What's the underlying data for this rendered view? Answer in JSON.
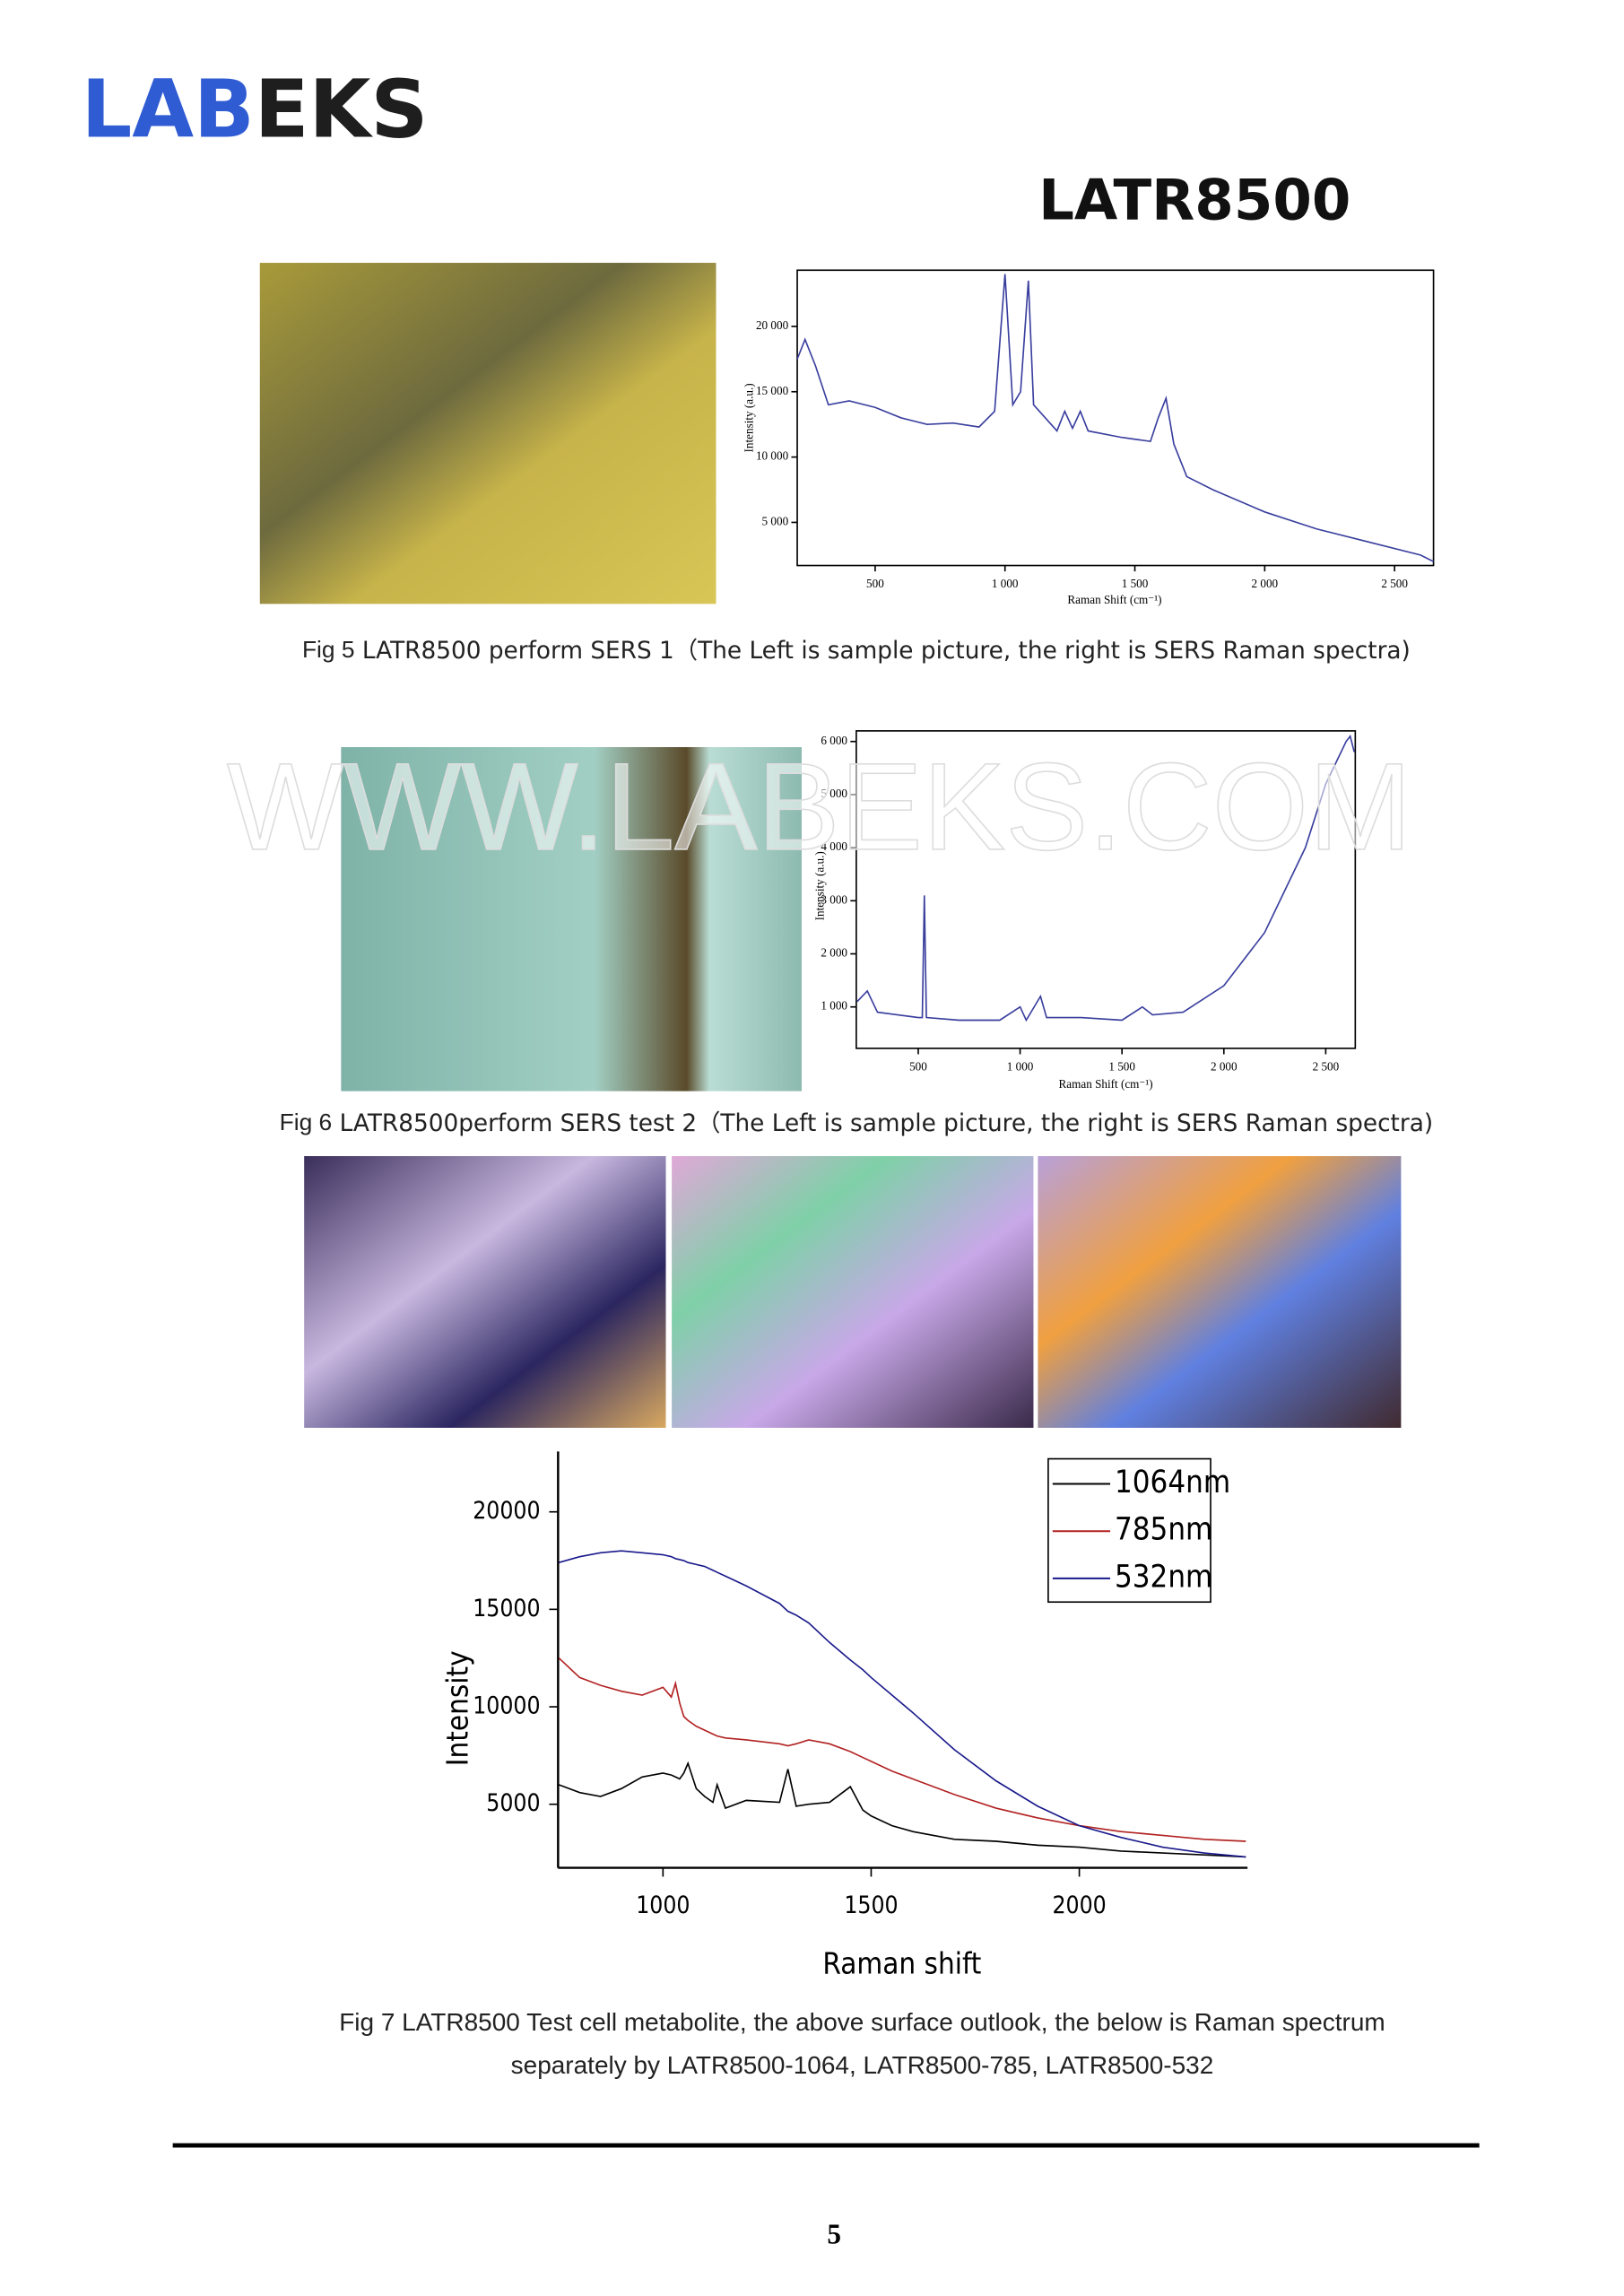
{
  "header": {
    "logo_blue": "LAB",
    "logo_dark": "EKS",
    "model": "LATR8500"
  },
  "watermark": "WWW.LABEKS.COM",
  "figures": [
    {
      "caption_label": "Fig 5",
      "caption": "LATR8500 perform SERS 1（The Left is sample picture, the right is SERS Raman spectra)",
      "chart": {
        "type": "line",
        "xlabel": "Raman Shift (cm⁻¹)",
        "ylabel": "Intensity (a.u.)",
        "xlim": [
          200,
          2650
        ],
        "ylim": [
          1700,
          24300
        ],
        "xticks": [
          500,
          {
            "value": 1000,
            "label": "1 000"
          },
          {
            "value": 1500,
            "label": "1 500"
          },
          {
            "value": 2000,
            "label": "2 000"
          },
          {
            "value": 2500,
            "label": "2 500"
          }
        ],
        "yticks": [
          {
            "value": 5000,
            "label": "5 000"
          },
          {
            "value": 10000,
            "label": "10 000"
          },
          {
            "value": 15000,
            "label": "15 000"
          },
          {
            "value": 20000,
            "label": "20 000"
          }
        ],
        "x": [
          200,
          230,
          270,
          320,
          400,
          500,
          600,
          700,
          800,
          900,
          960,
          1000,
          1030,
          1060,
          1090,
          1110,
          1200,
          1230,
          1260,
          1290,
          1320,
          1450,
          1560,
          1590,
          1620,
          1650,
          1700,
          1800,
          2000,
          2200,
          2400,
          2600,
          2650
        ],
        "series": [
          {
            "color": "#3a3f9e",
            "values": [
              17500,
              19000,
              17000,
              14000,
              14300,
              13800,
              13000,
              12500,
              12600,
              12300,
              13500,
              24000,
              14000,
              15000,
              23500,
              14000,
              12000,
              13500,
              12200,
              13500,
              12000,
              11500,
              11200,
              13000,
              14500,
              11000,
              8500,
              7500,
              5800,
              4500,
              3500,
              2500,
              2000
            ]
          }
        ]
      }
    },
    {
      "caption_label": "Fig 6",
      "caption": "LATR8500perform SERS test 2（The Left is sample picture, the right is SERS Raman spectra)",
      "chart": {
        "type": "line",
        "xlabel": "Raman Shift (cm⁻¹)",
        "ylabel": "Intensity (a.u.)",
        "xlim": [
          196,
          2645
        ],
        "ylim": [
          220,
          6200
        ],
        "xticks": [
          500,
          {
            "value": 1000,
            "label": "1 000"
          },
          {
            "value": 1500,
            "label": "1 500"
          },
          {
            "value": 2000,
            "label": "2 000"
          },
          {
            "value": 2500,
            "label": "2 500"
          }
        ],
        "yticks": [
          {
            "value": 1000,
            "label": "1 000"
          },
          {
            "value": 2000,
            "label": "2 000"
          },
          {
            "value": 3000,
            "label": "3 000"
          },
          {
            "value": 4000,
            "label": "4 000"
          },
          {
            "value": 5000,
            "label": "5 000"
          },
          {
            "value": 6000,
            "label": "6 000"
          }
        ],
        "x": [
          200,
          250,
          300,
          400,
          500,
          520,
          530,
          540,
          700,
          900,
          1000,
          1030,
          1100,
          1130,
          1300,
          1500,
          1600,
          1650,
          1800,
          2000,
          2200,
          2400,
          2500,
          2600,
          2620,
          2640
        ],
        "series": [
          {
            "color": "#3a3f9e",
            "values": [
              1100,
              1300,
              900,
              850,
              800,
              800,
              3100,
              800,
              750,
              750,
              1000,
              750,
              1200,
              800,
              800,
              750,
              1000,
              850,
              900,
              1400,
              2400,
              4000,
              5200,
              6000,
              6100,
              5800
            ]
          }
        ]
      }
    },
    {
      "caption_label": "Fig 7",
      "caption": "LATR8500 Test cell metabolite, the above surface outlook, the below is Raman spectrum",
      "caption_line2": "separately by LATR8500-1064, LATR8500-785, LATR8500-532",
      "chart": {
        "type": "line",
        "xlabel": "Raman shift",
        "ylabel": "Intensity",
        "xlim": [
          748,
          2404
        ],
        "ylim": [
          1740,
          23100
        ],
        "xticks": [
          1000,
          1500,
          2000
        ],
        "yticks": [
          5000,
          10000,
          15000,
          20000
        ],
        "x": [
          750,
          800,
          850,
          900,
          950,
          1000,
          1020,
          1030,
          1040,
          1050,
          1060,
          1080,
          1100,
          1120,
          1130,
          1150,
          1200,
          1280,
          1300,
          1320,
          1350,
          1400,
          1450,
          1480,
          1500,
          1550,
          1600,
          1700,
          1800,
          1900,
          2000,
          2100,
          2200,
          2300,
          2400
        ],
        "series": [
          {
            "name": "1064nm",
            "color": "#000000",
            "values": [
              6000,
              5600,
              5400,
              5800,
              6400,
              6600,
              6500,
              6400,
              6300,
              6600,
              7100,
              5800,
              5400,
              5100,
              6000,
              4800,
              5200,
              5100,
              6800,
              4900,
              5000,
              5100,
              5900,
              4700,
              4400,
              3900,
              3600,
              3200,
              3100,
              2900,
              2800,
              2600,
              2500,
              2400,
              2300
            ]
          },
          {
            "name": "785nm",
            "color": "#b22222",
            "values": [
              12500,
              11500,
              11100,
              10800,
              10600,
              11000,
              10500,
              11200,
              10200,
              9500,
              9300,
              9000,
              8800,
              8600,
              8500,
              8400,
              8300,
              8100,
              8000,
              8100,
              8300,
              8100,
              7700,
              7400,
              7200,
              6700,
              6300,
              5500,
              4800,
              4300,
              3900,
              3600,
              3400,
              3200,
              3100
            ]
          },
          {
            "name": "532nm",
            "color": "#1a1a8c",
            "values": [
              17400,
              17700,
              17900,
              18000,
              17900,
              17800,
              17700,
              17600,
              17550,
              17500,
              17400,
              17300,
              17200,
              17000,
              16900,
              16700,
              16200,
              15300,
              14900,
              14700,
              14300,
              13300,
              12400,
              11900,
              11500,
              10600,
              9700,
              7800,
              6200,
              4900,
              3900,
              3300,
              2800,
              2500,
              2300
            ]
          }
        ]
      }
    }
  ],
  "page_number": 5
}
